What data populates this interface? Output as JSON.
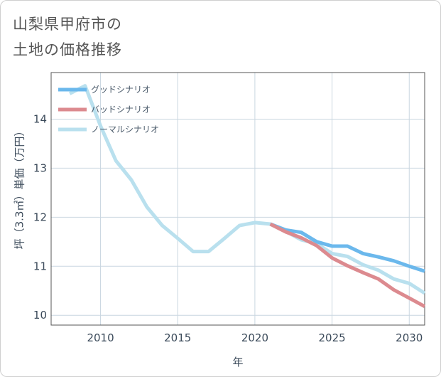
{
  "title_lines": [
    "山梨県甲府市の",
    "土地の価格推移"
  ],
  "colors": {
    "good": "#6bb8ec",
    "bad": "#dc8a8f",
    "normal": "#b9e0ee",
    "grid": "#c9d6e0",
    "plot_border": "#555555"
  },
  "chart_data": {
    "type": "line",
    "title": "山梨県甲府市の土地の価格推移",
    "xlabel": "年",
    "ylabel": "坪（3.3㎡）単価（万円）",
    "xlim": [
      2006.8,
      2031
    ],
    "ylim": [
      9.8,
      14.95
    ],
    "xticks": [
      2010,
      2015,
      2020,
      2025,
      2030
    ],
    "yticks": [
      10,
      11,
      12,
      13,
      14
    ],
    "grid": true,
    "legend_position": "top-left",
    "series": [
      {
        "name": "グッドシナリオ",
        "color_key": "good",
        "x": [
          2021,
          2022,
          2023,
          2024,
          2025,
          2026,
          2027,
          2028,
          2029,
          2030,
          2031
        ],
        "y": [
          11.86,
          11.74,
          11.69,
          11.5,
          11.41,
          11.41,
          11.26,
          11.19,
          11.11,
          11.0,
          10.9
        ]
      },
      {
        "name": "バッドシナリオ",
        "color_key": "bad",
        "x": [
          2021,
          2022,
          2023,
          2024,
          2025,
          2026,
          2027,
          2028,
          2029,
          2030,
          2031
        ],
        "y": [
          11.86,
          11.7,
          11.58,
          11.42,
          11.17,
          11.01,
          10.87,
          10.74,
          10.52,
          10.35,
          10.18
        ]
      },
      {
        "name": "ノーマルシナリオ",
        "color_key": "normal",
        "x": [
          2008,
          2009,
          2010,
          2011,
          2012,
          2013,
          2014,
          2015,
          2016,
          2017,
          2018,
          2019,
          2020,
          2021,
          2022,
          2023,
          2024,
          2025,
          2026,
          2027,
          2028,
          2029,
          2030,
          2031
        ],
        "y": [
          14.52,
          14.68,
          13.86,
          13.15,
          12.76,
          12.21,
          11.83,
          11.57,
          11.3,
          11.3,
          11.56,
          11.83,
          11.89,
          11.86,
          11.71,
          11.54,
          11.46,
          11.26,
          11.2,
          11.03,
          10.92,
          10.74,
          10.65,
          10.45
        ]
      }
    ]
  }
}
